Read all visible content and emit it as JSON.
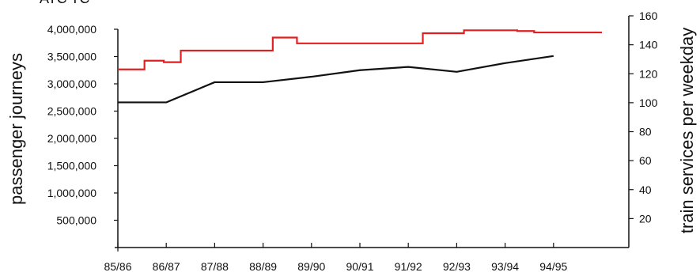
{
  "chart_data": {
    "type": "line",
    "title": "",
    "title_fragment": "ATC TC",
    "x_categories": [
      "85/86",
      "86/87",
      "87/88",
      "88/89",
      "89/90",
      "90/91",
      "91/92",
      "92/93",
      "93/94",
      "94/95"
    ],
    "y_left": {
      "label": "passenger journeys",
      "range": [
        0,
        4000000
      ],
      "ticks": [
        500000,
        1000000,
        1500000,
        2000000,
        2500000,
        3000000,
        3500000,
        4000000
      ],
      "tick_labels": [
        "500,000",
        "1,000,000",
        "1,500,000",
        "2,000,000",
        "2,500,000",
        "3,000,000",
        "3,500,000",
        "4,000,000"
      ]
    },
    "y_right": {
      "label": "train services per weekday",
      "range": [
        0,
        160
      ],
      "ticks": [
        20,
        40,
        60,
        80,
        100,
        120,
        140,
        160
      ],
      "tick_labels": [
        "20",
        "40",
        "60",
        "80",
        "100",
        "120",
        "140",
        "160"
      ]
    },
    "series": [
      {
        "axis": "left",
        "style": "line",
        "color": "#111111",
        "points": [
          {
            "x": 0,
            "y": 2660000
          },
          {
            "x": 1,
            "y": 2660000
          },
          {
            "x": 2,
            "y": 3030000
          },
          {
            "x": 3,
            "y": 3030000
          },
          {
            "x": 4,
            "y": 3130000
          },
          {
            "x": 5,
            "y": 3250000
          },
          {
            "x": 6,
            "y": 3310000
          },
          {
            "x": 7,
            "y": 3220000
          },
          {
            "x": 8,
            "y": 3380000
          },
          {
            "x": 9,
            "y": 3510000
          }
        ]
      },
      {
        "axis": "right",
        "style": "step",
        "color": "#e02020",
        "steps": [
          {
            "x_start": 0.0,
            "x_end": 0.55,
            "y": 123
          },
          {
            "x_start": 0.55,
            "x_end": 0.95,
            "y": 129
          },
          {
            "x_start": 0.95,
            "x_end": 1.3,
            "y": 128
          },
          {
            "x_start": 1.3,
            "x_end": 3.2,
            "y": 136
          },
          {
            "x_start": 3.2,
            "x_end": 3.7,
            "y": 145
          },
          {
            "x_start": 3.7,
            "x_end": 6.3,
            "y": 141
          },
          {
            "x_start": 6.3,
            "x_end": 7.15,
            "y": 148
          },
          {
            "x_start": 7.15,
            "x_end": 8.25,
            "y": 150
          },
          {
            "x_start": 8.25,
            "x_end": 8.6,
            "y": 149.5
          },
          {
            "x_start": 8.6,
            "x_end": 10.0,
            "y": 148.5
          }
        ]
      }
    ],
    "grid": false,
    "legend": "none"
  }
}
